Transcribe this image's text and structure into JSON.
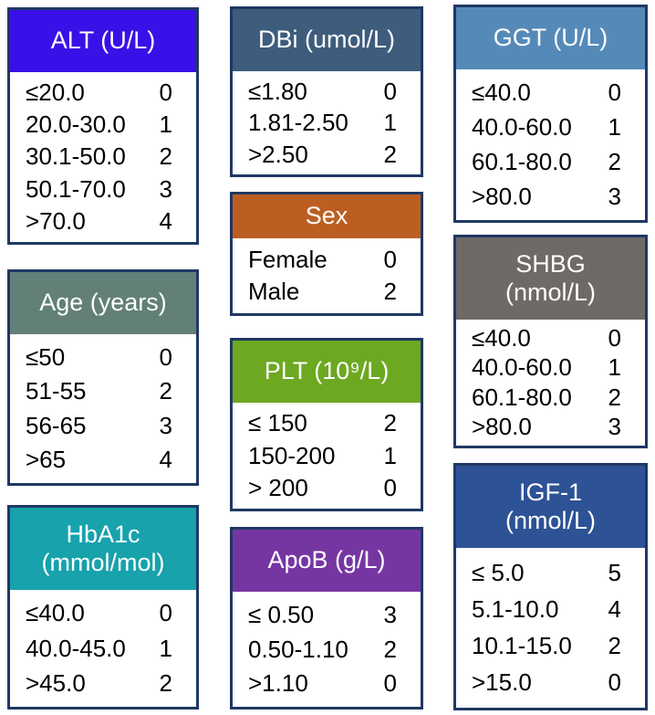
{
  "border_color": "#1f3864",
  "cards": [
    {
      "id": "alt",
      "title": "ALT (U/L)",
      "header_color": "#3a10e8",
      "rows": [
        {
          "range": "≤20.0",
          "score": "0"
        },
        {
          "range": "20.0-30.0",
          "score": "1"
        },
        {
          "range": "30.1-50.0",
          "score": "2"
        },
        {
          "range": "50.1-70.0",
          "score": "3"
        },
        {
          "range": ">70.0",
          "score": "4"
        }
      ]
    },
    {
      "id": "age",
      "title": "Age (years)",
      "header_color": "#628077",
      "rows": [
        {
          "range": "≤50",
          "score": "0"
        },
        {
          "range": "51-55",
          "score": "2"
        },
        {
          "range": "56-65",
          "score": "3"
        },
        {
          "range": ">65",
          "score": "4"
        }
      ]
    },
    {
      "id": "hba1c",
      "title": "HbA1c\n(mmol/mol)",
      "header_color": "#17a2ac",
      "rows": [
        {
          "range": "≤40.0",
          "score": "0"
        },
        {
          "range": "40.0-45.0",
          "score": "1"
        },
        {
          "range": ">45.0",
          "score": "2"
        }
      ]
    },
    {
      "id": "dbi",
      "title": "DBi (umol/L)",
      "header_color": "#3e5c7c",
      "rows": [
        {
          "range": "≤1.80",
          "score": "0"
        },
        {
          "range": "1.81-2.50",
          "score": "1"
        },
        {
          "range": ">2.50",
          "score": "2"
        }
      ]
    },
    {
      "id": "sex",
      "title": "Sex",
      "header_color": "#bc5e22",
      "rows": [
        {
          "range": "Female",
          "score": "0"
        },
        {
          "range": "Male",
          "score": "2"
        }
      ]
    },
    {
      "id": "plt",
      "title": "PLT (10⁹/L)",
      "header_color": "#6da821",
      "rows": [
        {
          "range": "≤ 150",
          "score": "2"
        },
        {
          "range": "150-200",
          "score": "1"
        },
        {
          "range": "> 200",
          "score": "0"
        }
      ]
    },
    {
      "id": "apob",
      "title": "ApoB (g/L)",
      "header_color": "#7636a2",
      "rows": [
        {
          "range": "≤ 0.50",
          "score": "3"
        },
        {
          "range": "0.50-1.10",
          "score": "2"
        },
        {
          "range": ">1.10",
          "score": "0"
        }
      ]
    },
    {
      "id": "ggt",
      "title": "GGT (U/L)",
      "header_color": "#558ab8",
      "rows": [
        {
          "range": "≤40.0",
          "score": "0"
        },
        {
          "range": "40.0-60.0",
          "score": "1"
        },
        {
          "range": "60.1-80.0",
          "score": "2"
        },
        {
          "range": ">80.0",
          "score": "3"
        }
      ]
    },
    {
      "id": "shbg",
      "title": "SHBG\n(nmol/L)",
      "header_color": "#6f6a68",
      "rows": [
        {
          "range": "≤40.0",
          "score": "0"
        },
        {
          "range": "40.0-60.0",
          "score": "1"
        },
        {
          "range": "60.1-80.0",
          "score": "2"
        },
        {
          "range": ">80.0",
          "score": "3"
        }
      ]
    },
    {
      "id": "igf1",
      "title": "IGF-1\n(nmol/L)",
      "header_color": "#2d5295",
      "rows": [
        {
          "range": "≤ 5.0",
          "score": "5"
        },
        {
          "range": "5.1-10.0",
          "score": "4"
        },
        {
          "range": "10.1-15.0",
          "score": "2"
        },
        {
          "range": ">15.0",
          "score": "0"
        }
      ]
    }
  ]
}
